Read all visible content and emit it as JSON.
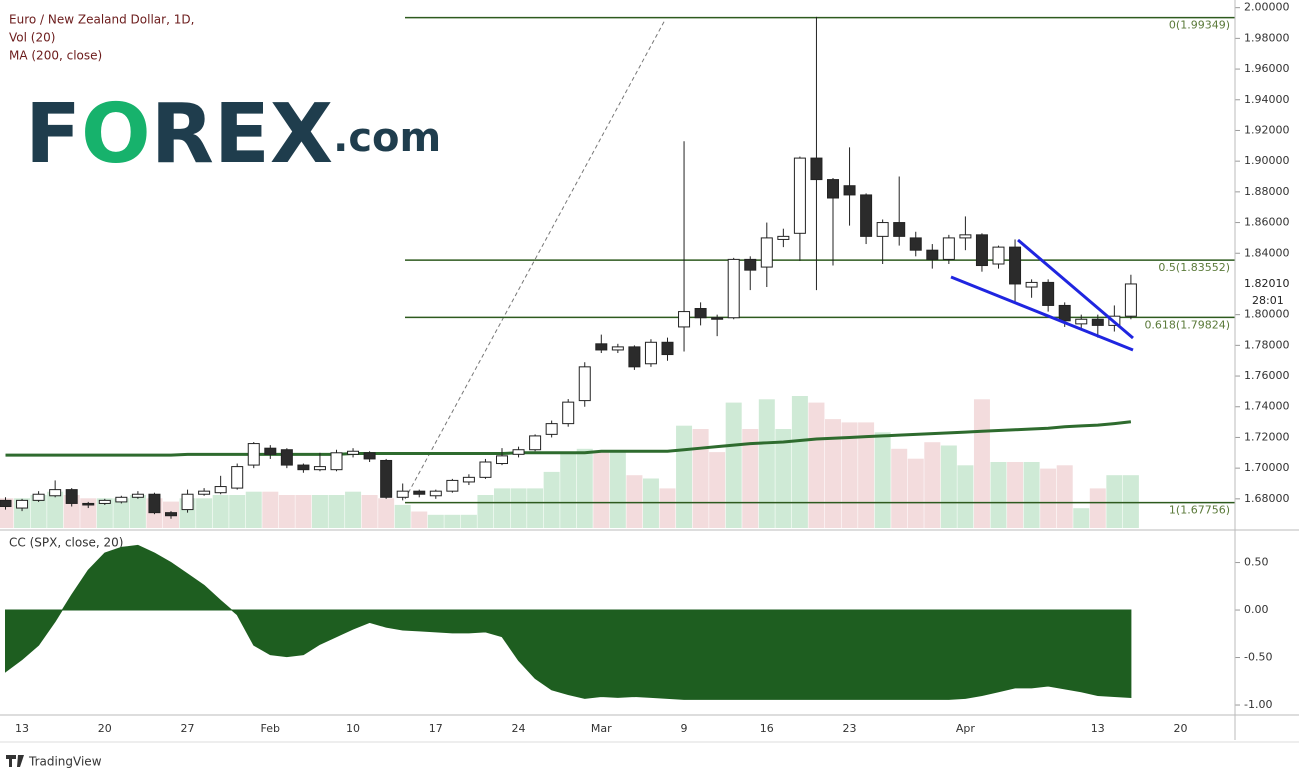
{
  "chart_data": [
    {
      "type": "candlestick",
      "title": "Euro / New Zealand Dollar, 1D,",
      "volume_label": "Vol (20)",
      "ma_label": "MA (200, close)",
      "logo": [
        "F",
        "O",
        "REX",
        ".com"
      ],
      "footer": "TradingView",
      "categories": [
        null,
        "13",
        null,
        null,
        null,
        null,
        "20",
        null,
        null,
        null,
        null,
        "27",
        null,
        null,
        null,
        null,
        "Feb",
        null,
        null,
        null,
        null,
        "10",
        null,
        null,
        null,
        null,
        "17",
        null,
        null,
        null,
        null,
        "24",
        null,
        null,
        null,
        null,
        "Mar",
        null,
        null,
        null,
        null,
        "9",
        null,
        null,
        null,
        null,
        "16",
        null,
        null,
        null,
        null,
        "23",
        null,
        null,
        null,
        null,
        null,
        null,
        "Apr",
        null,
        null,
        null,
        null,
        null,
        null,
        null,
        "13",
        null,
        null,
        null,
        null,
        "20"
      ],
      "open": [
        1.679,
        1.674,
        1.679,
        1.682,
        1.686,
        1.677,
        1.677,
        1.678,
        1.681,
        1.683,
        1.671,
        1.673,
        1.683,
        1.684,
        1.687,
        1.702,
        1.713,
        1.712,
        1.702,
        1.699,
        1.699,
        1.709,
        1.71,
        1.705,
        1.681,
        1.685,
        1.682,
        1.685,
        1.691,
        1.694,
        1.703,
        1.709,
        1.712,
        1.722,
        1.729,
        1.744,
        1.781,
        1.777,
        1.779,
        1.768,
        1.782,
        1.792,
        1.804,
        1.798,
        1.798,
        1.836,
        1.831,
        1.849,
        1.853,
        1.902,
        1.888,
        1.884,
        1.878,
        1.851,
        1.86,
        1.85,
        1.842,
        1.836,
        1.85,
        1.852,
        1.833,
        1.844,
        1.818,
        1.821,
        1.806,
        1.794,
        1.797,
        1.793,
        1.799,
        null,
        null,
        null
      ],
      "high": [
        1.681,
        1.68,
        1.685,
        1.692,
        1.687,
        1.678,
        1.68,
        1.682,
        1.685,
        1.684,
        1.672,
        1.686,
        1.687,
        1.695,
        1.703,
        1.717,
        1.715,
        1.713,
        1.703,
        1.71,
        1.712,
        1.713,
        1.711,
        1.706,
        1.69,
        1.686,
        1.686,
        1.693,
        1.696,
        1.706,
        1.713,
        1.714,
        1.722,
        1.731,
        1.745,
        1.769,
        1.787,
        1.781,
        1.78,
        1.784,
        1.785,
        1.913,
        1.808,
        1.8,
        1.837,
        1.838,
        1.86,
        1.856,
        1.903,
        1.994,
        1.889,
        1.909,
        1.879,
        1.862,
        1.89,
        1.854,
        1.846,
        1.852,
        1.864,
        1.853,
        1.845,
        1.849,
        1.823,
        1.823,
        1.808,
        1.8,
        1.8,
        1.806,
        1.826,
        null,
        null,
        null
      ],
      "low": [
        1.673,
        1.672,
        1.678,
        1.681,
        1.675,
        1.674,
        1.676,
        1.677,
        1.68,
        1.67,
        1.667,
        1.671,
        1.682,
        1.683,
        1.686,
        1.7,
        1.706,
        1.7,
        1.697,
        1.698,
        1.698,
        1.707,
        1.704,
        1.68,
        1.679,
        1.681,
        1.68,
        1.684,
        1.689,
        1.693,
        1.702,
        1.707,
        1.711,
        1.72,
        1.727,
        1.74,
        1.775,
        1.775,
        1.764,
        1.766,
        1.77,
        1.776,
        1.793,
        1.786,
        1.797,
        1.816,
        1.818,
        1.844,
        1.835,
        1.816,
        1.832,
        1.858,
        1.846,
        1.833,
        1.845,
        1.838,
        1.83,
        1.833,
        1.842,
        1.828,
        1.83,
        1.808,
        1.811,
        1.802,
        1.792,
        1.791,
        1.785,
        1.789,
        1.797,
        null,
        null,
        null
      ],
      "close": [
        1.675,
        1.679,
        1.683,
        1.686,
        1.677,
        1.676,
        1.679,
        1.681,
        1.683,
        1.671,
        1.669,
        1.683,
        1.685,
        1.688,
        1.701,
        1.716,
        1.709,
        1.702,
        1.699,
        1.701,
        1.71,
        1.711,
        1.706,
        1.681,
        1.685,
        1.683,
        1.685,
        1.692,
        1.694,
        1.704,
        1.708,
        1.712,
        1.721,
        1.729,
        1.743,
        1.766,
        1.777,
        1.779,
        1.766,
        1.782,
        1.774,
        1.802,
        1.798,
        1.797,
        1.836,
        1.829,
        1.85,
        1.851,
        1.902,
        1.888,
        1.876,
        1.878,
        1.851,
        1.86,
        1.851,
        1.842,
        1.836,
        1.85,
        1.852,
        1.832,
        1.844,
        1.82,
        1.821,
        1.806,
        1.796,
        1.797,
        1.793,
        1.799,
        1.82,
        null,
        null,
        null
      ],
      "up_color": "#ffffff",
      "down_color": "#2b2b2b",
      "volume": {
        "values": [
          9,
          9,
          10,
          11,
          10,
          9,
          9,
          9,
          10,
          9,
          8,
          9,
          9,
          10,
          10,
          11,
          11,
          10,
          10,
          10,
          10,
          11,
          10,
          9,
          7,
          5,
          4,
          4,
          4,
          10,
          12,
          12,
          12,
          17,
          23,
          24,
          23,
          23,
          16,
          15,
          12,
          31,
          30,
          23,
          38,
          30,
          39,
          30,
          40,
          38,
          33,
          32,
          32,
          29,
          24,
          21,
          26,
          25,
          19,
          39,
          20,
          20,
          20,
          18,
          19,
          6,
          12,
          16,
          16,
          null,
          null,
          null
        ],
        "ylim": [
          0,
          160
        ],
        "up_color": "#cfead6",
        "down_color": "#f3dcdd"
      },
      "ma": {
        "color": "#2e6b2e",
        "values": [
          1.7085,
          1.7085,
          1.7085,
          1.7085,
          1.7085,
          1.7085,
          1.7085,
          1.7085,
          1.7085,
          1.7085,
          1.7085,
          1.709,
          1.709,
          1.709,
          1.709,
          1.709,
          1.709,
          1.709,
          1.709,
          1.709,
          1.709,
          1.7095,
          1.7095,
          1.7095,
          1.7095,
          1.7095,
          1.7095,
          1.7095,
          1.7095,
          1.7095,
          1.7095,
          1.71,
          1.71,
          1.71,
          1.71,
          1.71,
          1.711,
          1.711,
          1.711,
          1.711,
          1.711,
          1.712,
          1.713,
          1.714,
          1.715,
          1.716,
          1.7165,
          1.717,
          1.718,
          1.719,
          1.7195,
          1.72,
          1.7205,
          1.721,
          1.7215,
          1.722,
          1.7225,
          1.723,
          1.7235,
          1.724,
          1.7245,
          1.725,
          1.7255,
          1.726,
          1.727,
          1.7275,
          1.728,
          1.729,
          1.7302,
          null,
          null,
          null
        ]
      },
      "ylim": [
        1.661,
        2.005
      ],
      "yticks": [
        {
          "value": 2.0,
          "label": "2.00000"
        },
        {
          "value": 1.98,
          "label": "1.98000"
        },
        {
          "value": 1.96,
          "label": "1.96000"
        },
        {
          "value": 1.94,
          "label": "1.94000"
        },
        {
          "value": 1.92,
          "label": "1.92000"
        },
        {
          "value": 1.9,
          "label": "1.90000"
        },
        {
          "value": 1.88,
          "label": "1.88000"
        },
        {
          "value": 1.86,
          "label": "1.86000"
        },
        {
          "value": 1.84,
          "label": "1.84000"
        },
        {
          "value": 1.8,
          "label": "1.80000"
        },
        {
          "value": 1.78,
          "label": "1.78000"
        },
        {
          "value": 1.76,
          "label": "1.76000"
        },
        {
          "value": 1.74,
          "label": "1.74000"
        },
        {
          "value": 1.72,
          "label": "1.72000"
        },
        {
          "value": 1.7,
          "label": "1.70000"
        },
        {
          "value": 1.68,
          "label": "1.68000"
        }
      ],
      "last_price": {
        "value": 1.8201,
        "label": "1.82010"
      },
      "countdown": "28:01",
      "fib_color": "#2d5a1e",
      "fib_levels": [
        {
          "value": 1.99349,
          "label": "0(1.99349)"
        },
        {
          "value": 1.83552,
          "label": "0.5(1.83552)"
        },
        {
          "value": 1.79824,
          "label": "0.618(1.79824)"
        },
        {
          "value": 1.67756,
          "label": "1(1.67756)"
        }
      ]
    },
    {
      "type": "area",
      "title": "CC (SPX, close, 20)",
      "color": "#1e5e20",
      "values": [
        -0.65,
        -0.52,
        -0.37,
        -0.12,
        0.16,
        0.42,
        0.6,
        0.66,
        0.68,
        0.6,
        0.5,
        0.38,
        0.26,
        0.1,
        -0.05,
        -0.37,
        -0.47,
        -0.49,
        -0.47,
        -0.36,
        -0.28,
        -0.2,
        -0.13,
        -0.18,
        -0.21,
        -0.22,
        -0.23,
        -0.24,
        -0.24,
        -0.23,
        -0.28,
        -0.53,
        -0.72,
        -0.84,
        -0.89,
        -0.93,
        -0.91,
        -0.92,
        -0.91,
        -0.92,
        -0.93,
        -0.94,
        -0.94,
        -0.94,
        -0.94,
        -0.94,
        -0.94,
        -0.94,
        -0.94,
        -0.94,
        -0.94,
        -0.94,
        -0.94,
        -0.94,
        -0.94,
        -0.94,
        -0.94,
        -0.94,
        -0.93,
        -0.9,
        -0.86,
        -0.82,
        -0.82,
        -0.8,
        -0.83,
        -0.86,
        -0.9,
        -0.91,
        -0.92,
        null,
        null,
        null
      ],
      "ylim": [
        -1.105,
        0.79
      ],
      "yticks": [
        {
          "value": 0.5,
          "label": "0.50"
        },
        {
          "value": 0,
          "label": "0.00"
        },
        {
          "value": -0.5,
          "label": "-0.50"
        },
        {
          "value": -1,
          "label": "-1.00"
        }
      ]
    }
  ]
}
